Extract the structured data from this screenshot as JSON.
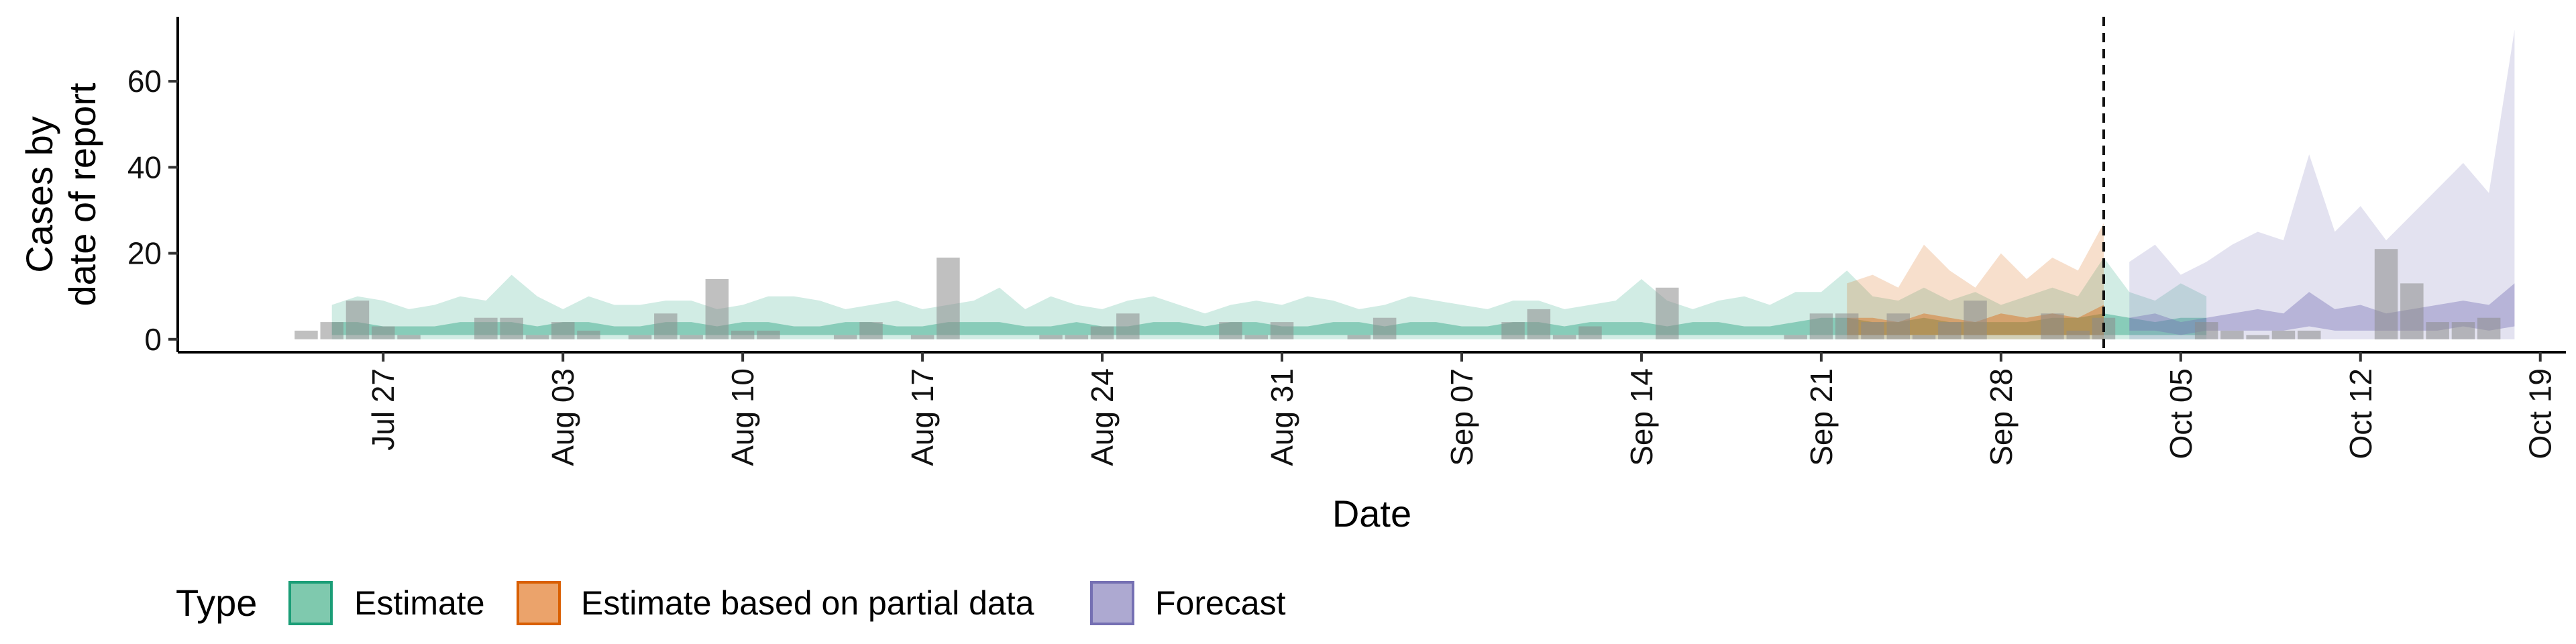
{
  "chart_data": {
    "type": "area",
    "xlabel": "Date",
    "ylabel_lines": [
      "Cases by",
      "date of report"
    ],
    "ylim": [
      -3,
      75
    ],
    "y_ticks": [
      0,
      20,
      40,
      60
    ],
    "x_ticks": [
      {
        "date": "2020-07-27",
        "label": "Jul 27"
      },
      {
        "date": "2020-08-03",
        "label": "Aug 03"
      },
      {
        "date": "2020-08-10",
        "label": "Aug 10"
      },
      {
        "date": "2020-08-17",
        "label": "Aug 17"
      },
      {
        "date": "2020-08-24",
        "label": "Aug 24"
      },
      {
        "date": "2020-08-31",
        "label": "Aug 31"
      },
      {
        "date": "2020-09-07",
        "label": "Sep 07"
      },
      {
        "date": "2020-09-14",
        "label": "Sep 14"
      },
      {
        "date": "2020-09-21",
        "label": "Sep 21"
      },
      {
        "date": "2020-09-28",
        "label": "Sep 28"
      },
      {
        "date": "2020-10-05",
        "label": "Oct 05"
      },
      {
        "date": "2020-10-12",
        "label": "Oct 12"
      },
      {
        "date": "2020-10-19",
        "label": "Oct 19"
      }
    ],
    "xlim": [
      "2020-07-19",
      "2020-10-20"
    ],
    "vline_date": "2020-10-02",
    "observed_cases": {
      "start_date": "2020-07-24",
      "values": [
        2,
        4,
        9,
        3,
        1,
        0,
        0,
        5,
        5,
        1,
        4,
        2,
        0,
        1,
        6,
        1,
        14,
        2,
        2,
        0,
        0,
        1,
        4,
        0,
        1,
        19,
        0,
        0,
        0,
        1,
        1,
        3,
        6,
        0,
        0,
        0,
        4,
        1,
        4,
        0,
        0,
        1,
        5,
        0,
        0,
        0,
        0,
        4,
        7,
        1,
        3,
        0,
        0,
        12,
        0,
        0,
        0,
        0,
        1,
        6,
        6,
        4,
        6,
        1,
        4,
        9,
        0,
        0,
        6,
        2,
        5,
        0,
        0,
        0,
        4,
        2,
        1,
        2,
        2,
        0,
        0,
        21,
        13,
        4,
        4,
        5
      ]
    },
    "legend": {
      "title": "Type",
      "items": [
        {
          "label": "Estimate",
          "fill": "#7FC9AE",
          "stroke": "#1B9E77"
        },
        {
          "label": "Estimate based on partial data",
          "fill": "#EBA36B",
          "stroke": "#D95F02"
        },
        {
          "label": "Forecast",
          "fill": "#ADA9D1",
          "stroke": "#7570B3"
        }
      ]
    },
    "series": [
      {
        "name": "Estimate",
        "color": "#1B9E77",
        "start_date": "2020-07-25",
        "upper_outer": [
          8,
          10,
          9,
          7,
          8,
          10,
          9,
          15,
          10,
          7,
          10,
          8,
          8,
          9,
          9,
          7,
          8,
          10,
          10,
          9,
          7,
          8,
          9,
          7,
          8,
          9,
          12,
          7,
          10,
          8,
          7,
          9,
          10,
          8,
          6,
          8,
          9,
          8,
          10,
          9,
          7,
          8,
          10,
          9,
          8,
          7,
          9,
          9,
          7,
          8,
          9,
          14,
          9,
          7,
          9,
          10,
          8,
          11,
          11,
          16,
          10,
          9,
          12,
          9,
          11,
          8,
          10,
          12,
          10,
          19,
          11,
          9,
          13,
          10
        ],
        "lower_outer": [
          0,
          0,
          0,
          0,
          0,
          0,
          0,
          0,
          0,
          0,
          0,
          0,
          0,
          0,
          0,
          0,
          0,
          0,
          0,
          0,
          0,
          0,
          0,
          0,
          0,
          0,
          0,
          0,
          0,
          0,
          0,
          0,
          0,
          0,
          0,
          0,
          0,
          0,
          0,
          0,
          0,
          0,
          0,
          0,
          0,
          0,
          0,
          0,
          0,
          0,
          0,
          0,
          0,
          0,
          0,
          0,
          0,
          0,
          0,
          0,
          0,
          0,
          0,
          0,
          0,
          0,
          0,
          0,
          0,
          0,
          0,
          0,
          0,
          0
        ],
        "upper_inner": [
          4,
          4,
          3,
          3,
          3,
          4,
          4,
          4,
          3,
          4,
          4,
          3,
          3,
          4,
          4,
          3,
          4,
          4,
          3,
          3,
          4,
          4,
          3,
          3,
          4,
          4,
          4,
          3,
          3,
          4,
          3,
          3,
          4,
          4,
          3,
          4,
          4,
          3,
          3,
          4,
          4,
          3,
          4,
          4,
          3,
          3,
          4,
          4,
          3,
          4,
          4,
          4,
          3,
          4,
          4,
          3,
          3,
          4,
          5,
          5,
          4,
          4,
          5,
          4,
          4,
          4,
          4,
          5,
          5,
          6,
          5,
          4,
          5,
          5
        ],
        "lower_inner": [
          1,
          1,
          1,
          1,
          1,
          1,
          1,
          1,
          1,
          1,
          1,
          1,
          1,
          1,
          1,
          1,
          1,
          1,
          1,
          1,
          1,
          1,
          1,
          1,
          1,
          1,
          1,
          1,
          1,
          1,
          1,
          1,
          1,
          1,
          1,
          1,
          1,
          1,
          1,
          1,
          1,
          1,
          1,
          1,
          1,
          1,
          1,
          1,
          1,
          1,
          1,
          1,
          1,
          1,
          1,
          1,
          1,
          1,
          1,
          1,
          1,
          1,
          1,
          1,
          1,
          1,
          1,
          1,
          1,
          1,
          1,
          1,
          1,
          1
        ]
      },
      {
        "name": "Estimate based on partial data",
        "color": "#D95F02",
        "start_date": "2020-09-22",
        "upper_outer": [
          13,
          15,
          12,
          22,
          16,
          12,
          20,
          14,
          19,
          16,
          27
        ],
        "lower_outer": [
          0,
          0,
          0,
          0,
          0,
          0,
          0,
          0,
          0,
          0,
          0
        ],
        "upper_inner": [
          5,
          5,
          4,
          6,
          5,
          4,
          6,
          5,
          6,
          5,
          8
        ],
        "lower_inner": [
          1,
          1,
          1,
          1,
          1,
          1,
          1,
          1,
          1,
          1,
          1
        ]
      },
      {
        "name": "Forecast",
        "color": "#7570B3",
        "start_date": "2020-10-03",
        "upper_outer": [
          18,
          22,
          15,
          18,
          22,
          25,
          23,
          43,
          25,
          31,
          23,
          29,
          35,
          41,
          34,
          72
        ],
        "lower_outer": [
          0,
          0,
          0,
          0,
          0,
          0,
          0,
          0,
          0,
          0,
          0,
          0,
          0,
          0,
          0,
          0
        ],
        "upper_inner": [
          5,
          6,
          4,
          5,
          6,
          7,
          6,
          11,
          7,
          8,
          6,
          7,
          8,
          9,
          8,
          13
        ],
        "lower_inner": [
          2,
          2,
          1,
          2,
          2,
          2,
          2,
          3,
          2,
          2,
          2,
          2,
          2,
          3,
          2,
          3
        ]
      }
    ]
  }
}
